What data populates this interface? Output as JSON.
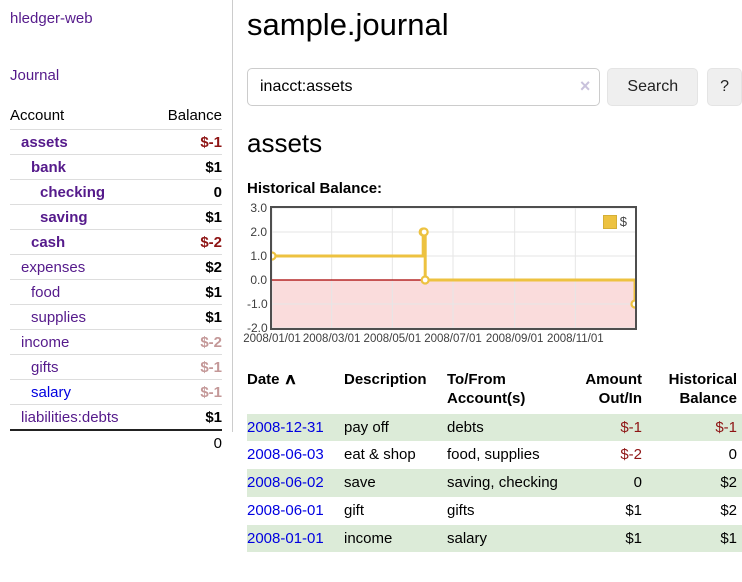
{
  "app": {
    "brand": "hledger-web"
  },
  "sidebar": {
    "journal_link": "Journal",
    "col_account": "Account",
    "col_balance": "Balance",
    "accounts": [
      {
        "name": "assets",
        "balance": "$-1"
      },
      {
        "name": "bank",
        "balance": "$1"
      },
      {
        "name": "checking",
        "balance": "0"
      },
      {
        "name": "saving",
        "balance": "$1"
      },
      {
        "name": "cash",
        "balance": "$-2"
      },
      {
        "name": "expenses",
        "balance": "$2"
      },
      {
        "name": "food",
        "balance": "$1"
      },
      {
        "name": "supplies",
        "balance": "$1"
      },
      {
        "name": "income",
        "balance": "$-2"
      },
      {
        "name": "gifts",
        "balance": "$-1"
      },
      {
        "name": "salary",
        "balance": "$-1"
      },
      {
        "name": "liabilities:debts",
        "balance": "$1"
      }
    ],
    "total": "0"
  },
  "header": {
    "title": "sample.journal"
  },
  "search": {
    "value": "inacct:assets",
    "clear_icon": "×",
    "search_button": "Search",
    "help_button": "?"
  },
  "account_page": {
    "heading": "assets"
  },
  "chart_data": {
    "type": "line",
    "step": true,
    "title": "Historical Balance:",
    "xrange": [
      "2008-01-01",
      "2008-12-31"
    ],
    "ylim": [
      -2,
      3
    ],
    "yticks": [
      "3.0",
      "2.0",
      "1.0",
      "0.0",
      "-1.0",
      "-2.0"
    ],
    "xticks": [
      "2008/01/01",
      "2008/03/01",
      "2008/05/01",
      "2008/07/01",
      "2008/09/01",
      "2008/11/01"
    ],
    "series": [
      {
        "name": "$",
        "color": "#edc240",
        "points": [
          [
            "2008-01-01",
            1
          ],
          [
            "2008-06-01",
            2
          ],
          [
            "2008-06-02",
            2
          ],
          [
            "2008-06-03",
            0
          ],
          [
            "2008-12-31",
            -1
          ]
        ]
      }
    ],
    "negative_region": {
      "from": -2,
      "to": 0,
      "fill": "#fadcdc",
      "line_color": "#a80000"
    },
    "grid": "on",
    "legend_position": "top-right",
    "legend_label": "$"
  },
  "register": {
    "columns": {
      "date": "Date",
      "description": "Description",
      "tofrom": "To/From Account(s)",
      "amount": "Amount Out/In",
      "balance": "Historical Balance"
    },
    "sort_indicator": "∧",
    "rows": [
      {
        "date": "2008-12-31",
        "description": "pay off",
        "accounts": "debts",
        "amount": "$-1",
        "balance": "$-1"
      },
      {
        "date": "2008-06-03",
        "description": "eat & shop",
        "accounts": "food, supplies",
        "amount": "$-2",
        "balance": "0"
      },
      {
        "date": "2008-06-02",
        "description": "save",
        "accounts": "saving, checking",
        "amount": "0",
        "balance": "$2"
      },
      {
        "date": "2008-06-01",
        "description": "gift",
        "accounts": "gifts",
        "amount": "$1",
        "balance": "$2"
      },
      {
        "date": "2008-01-01",
        "description": "income",
        "accounts": "salary",
        "amount": "$1",
        "balance": "$1"
      }
    ]
  },
  "colors": {
    "link_purple": "#551a8b",
    "link_blue": "#0000e0",
    "negative": "#8e1414",
    "negative_dimmed": "#c49898",
    "row_highlight_green": "#dcebd8",
    "chart_series_gold": "#edc240",
    "chart_negative_fill": "#fadcdc",
    "chart_zero_line": "#a80000"
  }
}
